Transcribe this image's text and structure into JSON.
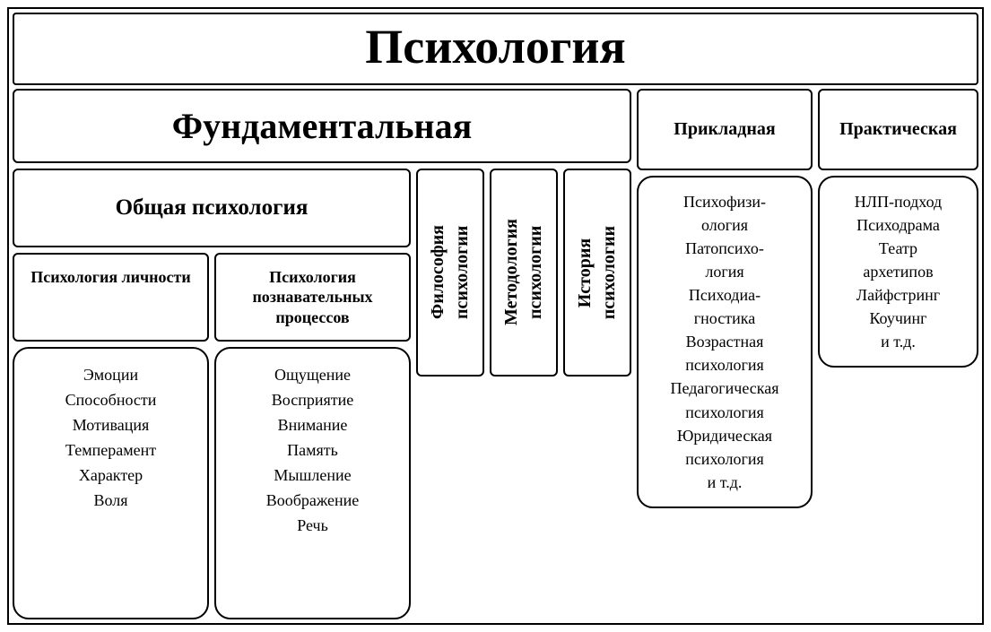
{
  "diagram": {
    "type": "tree",
    "background_color": "#ffffff",
    "border_color": "#000000",
    "text_color": "#000000",
    "border_width": 2,
    "border_radius_sharp": 4,
    "border_radius_box": 6,
    "border_radius_round": 18,
    "font_family": "serif",
    "title": {
      "text": "Психология",
      "fontsize": 54,
      "fontweight": "bold"
    },
    "branches": {
      "fundamental": {
        "label": "Фундаментальная",
        "fontsize": 40,
        "children": {
          "general": {
            "label": "Общая  психология",
            "fontsize": 25,
            "sub": {
              "personality": {
                "label": "Психология личности",
                "fontsize": 18,
                "items": [
                  "Эмоции",
                  "Способности",
                  "Мотивация",
                  "Темперамент",
                  "Характер",
                  "Воля"
                ],
                "item_fontsize": 18
              },
              "cognitive": {
                "label": "Психология познавательных процессов",
                "fontsize": 18,
                "items": [
                  "Ощущение",
                  "Восприятие",
                  "Внимание",
                  "Память",
                  "Мышление",
                  "Воображение",
                  "Речь"
                ],
                "item_fontsize": 18
              }
            }
          },
          "philosophy": {
            "label": "Философия\nпсихологии",
            "fontsize": 20,
            "vertical": true
          },
          "methodology": {
            "label": "Методология\nпсихологии",
            "fontsize": 20,
            "vertical": true
          },
          "history": {
            "label": "История\nпсихологии",
            "fontsize": 20,
            "vertical": true
          }
        }
      },
      "applied": {
        "label": "Прикладная",
        "fontsize": 20,
        "items": [
          "Психофизи-\nология",
          "Патопсихо-\nлогия",
          "Психодиа-\nгностика",
          "Возрастная\nпсихология",
          "Педагогическая\nпсихология",
          "Юридическая\nпсихология\nи т.д."
        ],
        "item_fontsize": 18
      },
      "practical": {
        "label": "Практическая",
        "fontsize": 20,
        "items": [
          "НЛП-подход",
          "Психодрама",
          "Театр\nархетипов",
          "Лайфстринг",
          "Коучинг\nи т.д."
        ],
        "item_fontsize": 18
      }
    }
  }
}
